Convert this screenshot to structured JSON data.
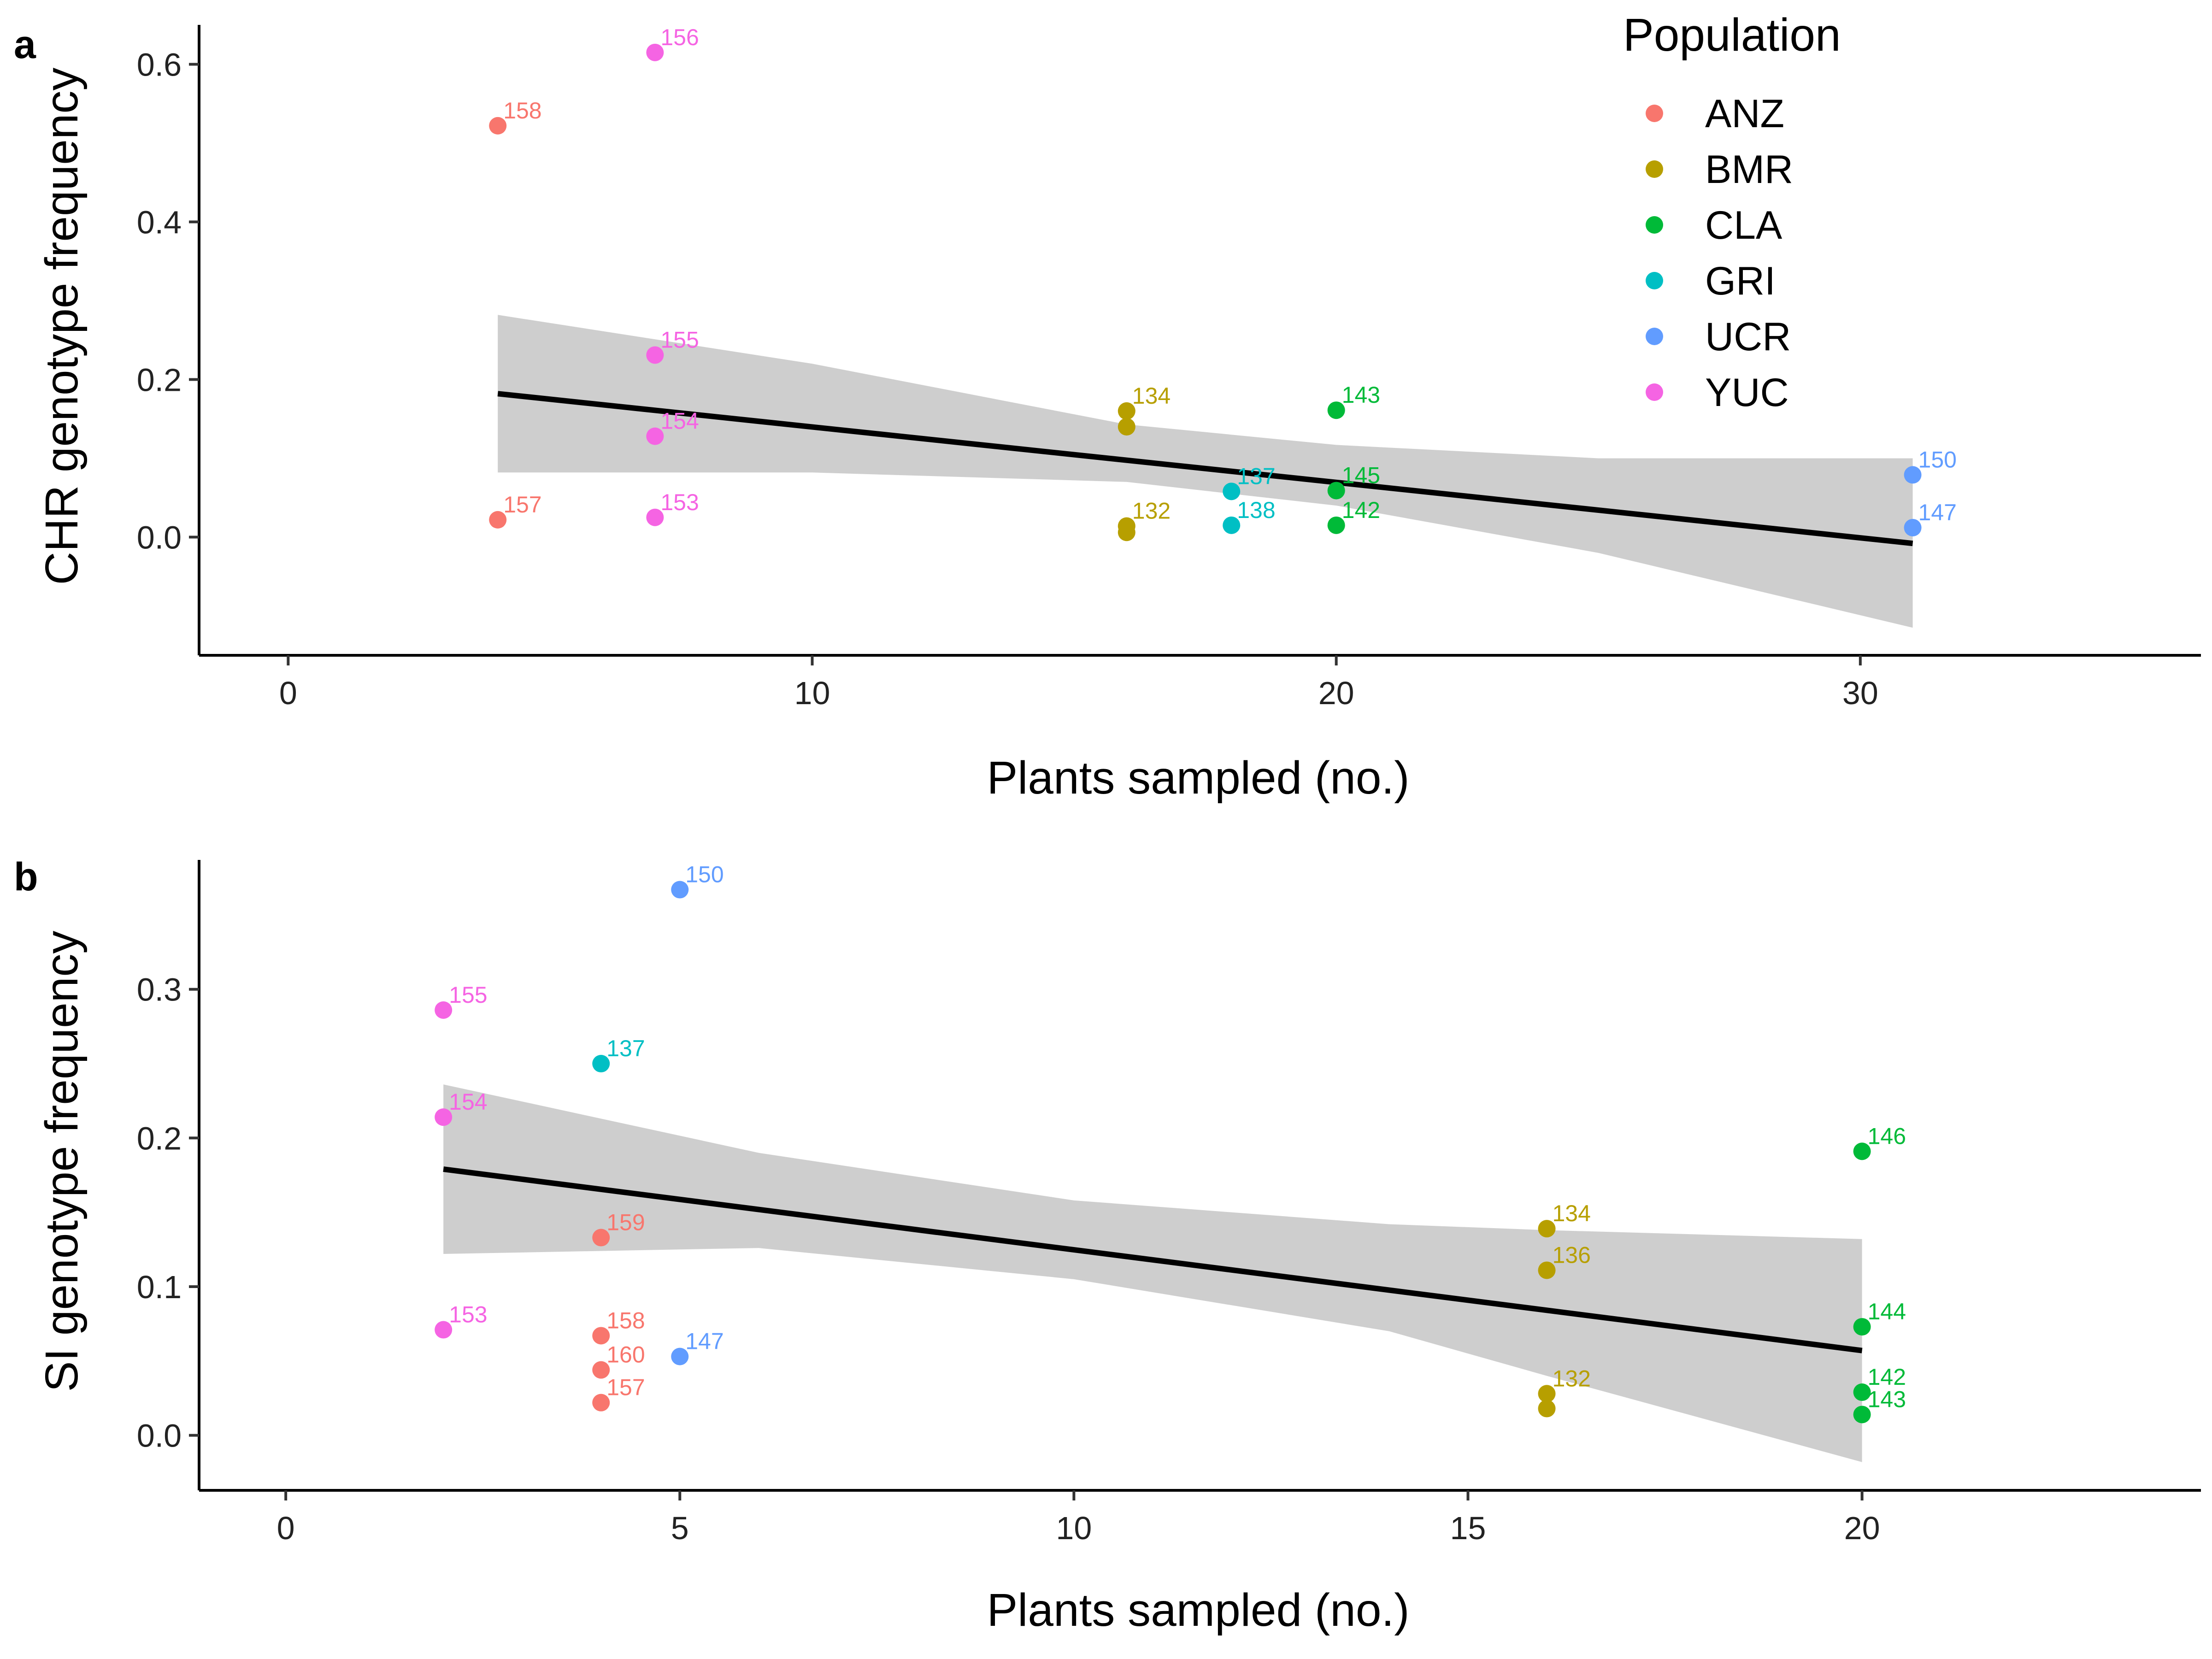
{
  "legend": {
    "title": "Population",
    "entries": [
      {
        "label": "ANZ",
        "color": "#F8766D"
      },
      {
        "label": "BMR",
        "color": "#B79F00"
      },
      {
        "label": "CLA",
        "color": "#00BA38"
      },
      {
        "label": "GRI",
        "color": "#00BFC4"
      },
      {
        "label": "UCR",
        "color": "#619CFF"
      },
      {
        "label": "YUC",
        "color": "#F564E3"
      }
    ]
  },
  "chart_data": [
    {
      "panel": "a",
      "type": "scatter",
      "xlabel": "Plants sampled (no.)",
      "ylabel": "CHR genotype frequency",
      "xlim": [
        -1.7,
        36.5
      ],
      "ylim": [
        -0.15,
        0.65
      ],
      "xticks": [
        "0",
        "10",
        "20",
        "30"
      ],
      "yticks": [
        "0.0",
        "0.2",
        "0.4",
        "0.6"
      ],
      "points": [
        {
          "x": 4,
          "y": 0.522,
          "label": "158",
          "population": "ANZ"
        },
        {
          "x": 4,
          "y": 0.022,
          "label": "157",
          "population": "ANZ"
        },
        {
          "x": 7,
          "y": 0.615,
          "label": "156",
          "population": "YUC"
        },
        {
          "x": 7,
          "y": 0.231,
          "label": "155",
          "population": "YUC"
        },
        {
          "x": 7,
          "y": 0.128,
          "label": "154",
          "population": "YUC"
        },
        {
          "x": 7,
          "y": 0.025,
          "label": "153",
          "population": "YUC"
        },
        {
          "x": 16,
          "y": 0.16,
          "label": "134",
          "population": "BMR"
        },
        {
          "x": 16,
          "y": 0.14,
          "label": "",
          "population": "BMR"
        },
        {
          "x": 16,
          "y": 0.014,
          "label": "132",
          "population": "BMR"
        },
        {
          "x": 16,
          "y": 0.006,
          "label": "",
          "population": "BMR"
        },
        {
          "x": 18,
          "y": 0.058,
          "label": "137",
          "population": "GRI"
        },
        {
          "x": 18,
          "y": 0.015,
          "label": "138",
          "population": "GRI"
        },
        {
          "x": 20,
          "y": 0.161,
          "label": "143",
          "population": "CLA"
        },
        {
          "x": 20,
          "y": 0.059,
          "label": "145",
          "population": "CLA"
        },
        {
          "x": 20,
          "y": 0.015,
          "label": "142",
          "population": "CLA"
        },
        {
          "x": 31,
          "y": 0.079,
          "label": "150",
          "population": "UCR"
        },
        {
          "x": 31,
          "y": 0.012,
          "label": "147",
          "population": "UCR"
        }
      ],
      "fit": {
        "x": [
          4,
          31
        ],
        "y": [
          0.182,
          -0.008
        ]
      },
      "ci": {
        "x": [
          4,
          10,
          16,
          20,
          25,
          31
        ],
        "lower": [
          0.082,
          0.082,
          0.07,
          0.04,
          -0.02,
          -0.115
        ],
        "upper": [
          0.282,
          0.22,
          0.143,
          0.117,
          0.1,
          0.1
        ]
      }
    },
    {
      "panel": "b",
      "type": "scatter",
      "xlabel": "Plants sampled (no.)",
      "ylabel": "SI genotype frequency",
      "xlim": [
        -1.1,
        24.3
      ],
      "ylim": [
        -0.037,
        0.387
      ],
      "xticks": [
        "0",
        "5",
        "10",
        "15",
        "20"
      ],
      "yticks": [
        "0.0",
        "0.1",
        "0.2",
        "0.3"
      ],
      "points": [
        {
          "x": 2,
          "y": 0.286,
          "label": "155",
          "population": "YUC"
        },
        {
          "x": 2,
          "y": 0.214,
          "label": "154",
          "population": "YUC"
        },
        {
          "x": 2,
          "y": 0.071,
          "label": "153",
          "population": "YUC"
        },
        {
          "x": 4,
          "y": 0.25,
          "label": "137",
          "population": "GRI"
        },
        {
          "x": 4,
          "y": 0.133,
          "label": "159",
          "population": "ANZ"
        },
        {
          "x": 4,
          "y": 0.067,
          "label": "158",
          "population": "ANZ"
        },
        {
          "x": 4,
          "y": 0.044,
          "label": "160",
          "population": "ANZ"
        },
        {
          "x": 4,
          "y": 0.022,
          "label": "157",
          "population": "ANZ"
        },
        {
          "x": 5,
          "y": 0.367,
          "label": "150",
          "population": "UCR"
        },
        {
          "x": 5,
          "y": 0.053,
          "label": "147",
          "population": "UCR"
        },
        {
          "x": 16,
          "y": 0.139,
          "label": "134",
          "population": "BMR"
        },
        {
          "x": 16,
          "y": 0.111,
          "label": "136",
          "population": "BMR"
        },
        {
          "x": 16,
          "y": 0.028,
          "label": "132",
          "population": "BMR"
        },
        {
          "x": 16,
          "y": 0.018,
          "label": "",
          "population": "BMR"
        },
        {
          "x": 20,
          "y": 0.191,
          "label": "146",
          "population": "CLA"
        },
        {
          "x": 20,
          "y": 0.073,
          "label": "144",
          "population": "CLA"
        },
        {
          "x": 20,
          "y": 0.029,
          "label": "142",
          "population": "CLA"
        },
        {
          "x": 20,
          "y": 0.014,
          "label": "143",
          "population": "CLA"
        }
      ],
      "fit": {
        "x": [
          2,
          20
        ],
        "y": [
          0.179,
          0.057
        ]
      },
      "ci": {
        "x": [
          2,
          6,
          10,
          14,
          16,
          20
        ],
        "lower": [
          0.122,
          0.126,
          0.105,
          0.07,
          0.04,
          -0.018
        ],
        "upper": [
          0.236,
          0.19,
          0.158,
          0.142,
          0.138,
          0.132
        ]
      }
    }
  ]
}
